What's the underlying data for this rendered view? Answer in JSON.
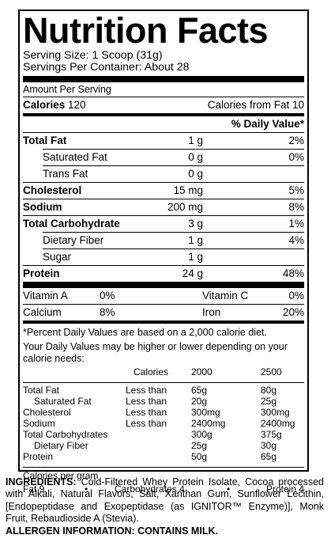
{
  "title": "Nutrition Facts",
  "serving_size": "Serving Size: 1 Scoop (31g)",
  "servings_per_container": "Servings Per Container: About 28",
  "amount_per_serving": "Amount Per Serving",
  "calories_label": "Calories",
  "calories_value": "120",
  "calories_from_fat": "Calories from Fat 10",
  "daily_value_header": "% Daily Value*",
  "nutrients": [
    {
      "name": "Total Fat",
      "amount": "1 g",
      "dv": "2%"
    },
    {
      "name": "Saturated Fat",
      "amount": "0 g",
      "dv": "0%"
    },
    {
      "name": "Trans Fat",
      "amount": "0 g",
      "dv": ""
    },
    {
      "name": "Cholesterol",
      "amount": "15 mg",
      "dv": "5%"
    },
    {
      "name": "Sodium",
      "amount": "200 mg",
      "dv": "8%"
    },
    {
      "name": "Total Carbohydrate",
      "amount": "3 g",
      "dv": "1%"
    },
    {
      "name": "Dietary Fiber",
      "amount": "1 g",
      "dv": "4%"
    },
    {
      "name": "Sugar",
      "amount": "1 g",
      "dv": ""
    },
    {
      "name": "Protein",
      "amount": "24 g",
      "dv": "48%"
    }
  ],
  "vitamins": [
    {
      "name": "Vitamin A",
      "dv": "0%"
    },
    {
      "name": "Vitamin C",
      "dv": "0%"
    },
    {
      "name": "Calcium",
      "dv": "8%"
    },
    {
      "name": "Iron",
      "dv": "20%"
    }
  ],
  "footnote_1": "*Percent Daily Values are based on a 2,000 calorie diet.",
  "footnote_2": "Your Daily Values may be higher or lower depending on your calorie needs:",
  "dv_table": {
    "headers": [
      "Calories",
      "2000",
      "2500"
    ],
    "rows": [
      {
        "name": "Total Fat",
        "limit": "Less than",
        "v2000": "65g",
        "v2500": "80g"
      },
      {
        "name": "Saturated Fat",
        "limit": "Less than",
        "v2000": "20g",
        "v2500": "25g"
      },
      {
        "name": "Cholesterol",
        "limit": "Less than",
        "v2000": "300mg",
        "v2500": "300mg"
      },
      {
        "name": "Sodium",
        "limit": "Less than",
        "v2000": "2400mg",
        "v2500": "2400mg"
      },
      {
        "name": "Total Carbohydrates",
        "limit": "",
        "v2000": "300g",
        "v2500": "375g"
      },
      {
        "name": "Dietary Fiber",
        "limit": "",
        "v2000": "25g",
        "v2500": "30g"
      },
      {
        "name": "Protein",
        "limit": "",
        "v2000": "50g",
        "v2500": "65g"
      }
    ]
  },
  "calories_per_gram": "Calories per gram",
  "cpg": {
    "fat": "Fat 9",
    "carb": "Carbohydrates 4",
    "protein": "Protein 4",
    "bullet": "•"
  },
  "ingredients_label": "INGREDIENTS:",
  "ingredients_text": "Cold-Filtered Whey Protein Isolate, Cocoa processed with Alkali, Natural Flavors, Salt, Xanthan Gum, Sunflower Lecithin, [Endopeptidase and Exopeptidase (as IGNITOR™ Enzyme)], Monk Fruit, Rebaudioside A (Stevia).",
  "allergen": "ALLERGEN INFORMATION: CONTAINS MILK."
}
